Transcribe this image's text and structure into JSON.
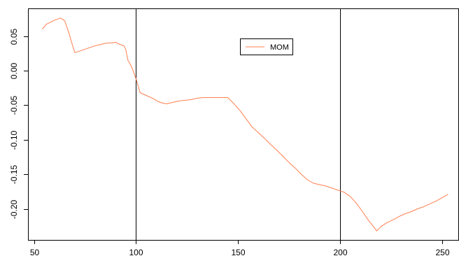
{
  "chart_data": {
    "type": "line",
    "title": "",
    "xlabel": "",
    "ylabel": "",
    "xlim": [
      47,
      258
    ],
    "ylim": [
      -0.245,
      0.09
    ],
    "x_ticks": [
      50,
      100,
      150,
      200,
      250
    ],
    "x_tick_labels": [
      "50",
      "100",
      "150",
      "200",
      "250"
    ],
    "y_ticks": [
      0.05,
      0.0,
      -0.05,
      -0.1,
      -0.15,
      -0.2
    ],
    "y_tick_labels": [
      "0.05",
      "0.00",
      "-0.05",
      "-0.10",
      "-0.15",
      "-0.20"
    ],
    "vlines": [
      100,
      200
    ],
    "grid": false,
    "legend": {
      "placement": "top-center",
      "entries": [
        "MOM"
      ]
    },
    "colors": {
      "series": "#ff7f50",
      "axis": "#000000",
      "vline": "#000000"
    },
    "series": [
      {
        "name": "MOM",
        "x": [
          54,
          56,
          58,
          60,
          62,
          63,
          65,
          67,
          69,
          70,
          72,
          75,
          78,
          80,
          83,
          86,
          88,
          90,
          92,
          94,
          95,
          96,
          97,
          98,
          99,
          100,
          102,
          105,
          108,
          111,
          113,
          115,
          118,
          121,
          124,
          127,
          130,
          133,
          136,
          139,
          142,
          145,
          148,
          151,
          154,
          157,
          160,
          163,
          166,
          169,
          172,
          175,
          178,
          181,
          184,
          187,
          190,
          193,
          196,
          199,
          202,
          205,
          208,
          211,
          214,
          217,
          218,
          220,
          223,
          226,
          229,
          232,
          235,
          238,
          241,
          244,
          247,
          250,
          253
        ],
        "y": [
          0.06,
          0.067,
          0.07,
          0.073,
          0.075,
          0.076,
          0.072,
          0.055,
          0.035,
          0.026,
          0.028,
          0.031,
          0.034,
          0.036,
          0.038,
          0.04,
          0.04,
          0.041,
          0.038,
          0.036,
          0.03,
          0.015,
          0.01,
          0.004,
          -0.004,
          -0.012,
          -0.032,
          -0.036,
          -0.04,
          -0.045,
          -0.047,
          -0.048,
          -0.046,
          -0.044,
          -0.043,
          -0.042,
          -0.04,
          -0.039,
          -0.039,
          -0.039,
          -0.039,
          -0.039,
          -0.048,
          -0.058,
          -0.07,
          -0.082,
          -0.09,
          -0.098,
          -0.107,
          -0.115,
          -0.124,
          -0.133,
          -0.141,
          -0.15,
          -0.158,
          -0.163,
          -0.165,
          -0.167,
          -0.17,
          -0.173,
          -0.176,
          -0.182,
          -0.192,
          -0.204,
          -0.217,
          -0.228,
          -0.232,
          -0.226,
          -0.22,
          -0.216,
          -0.211,
          -0.207,
          -0.204,
          -0.2,
          -0.197,
          -0.193,
          -0.189,
          -0.184,
          -0.179
        ]
      }
    ]
  }
}
